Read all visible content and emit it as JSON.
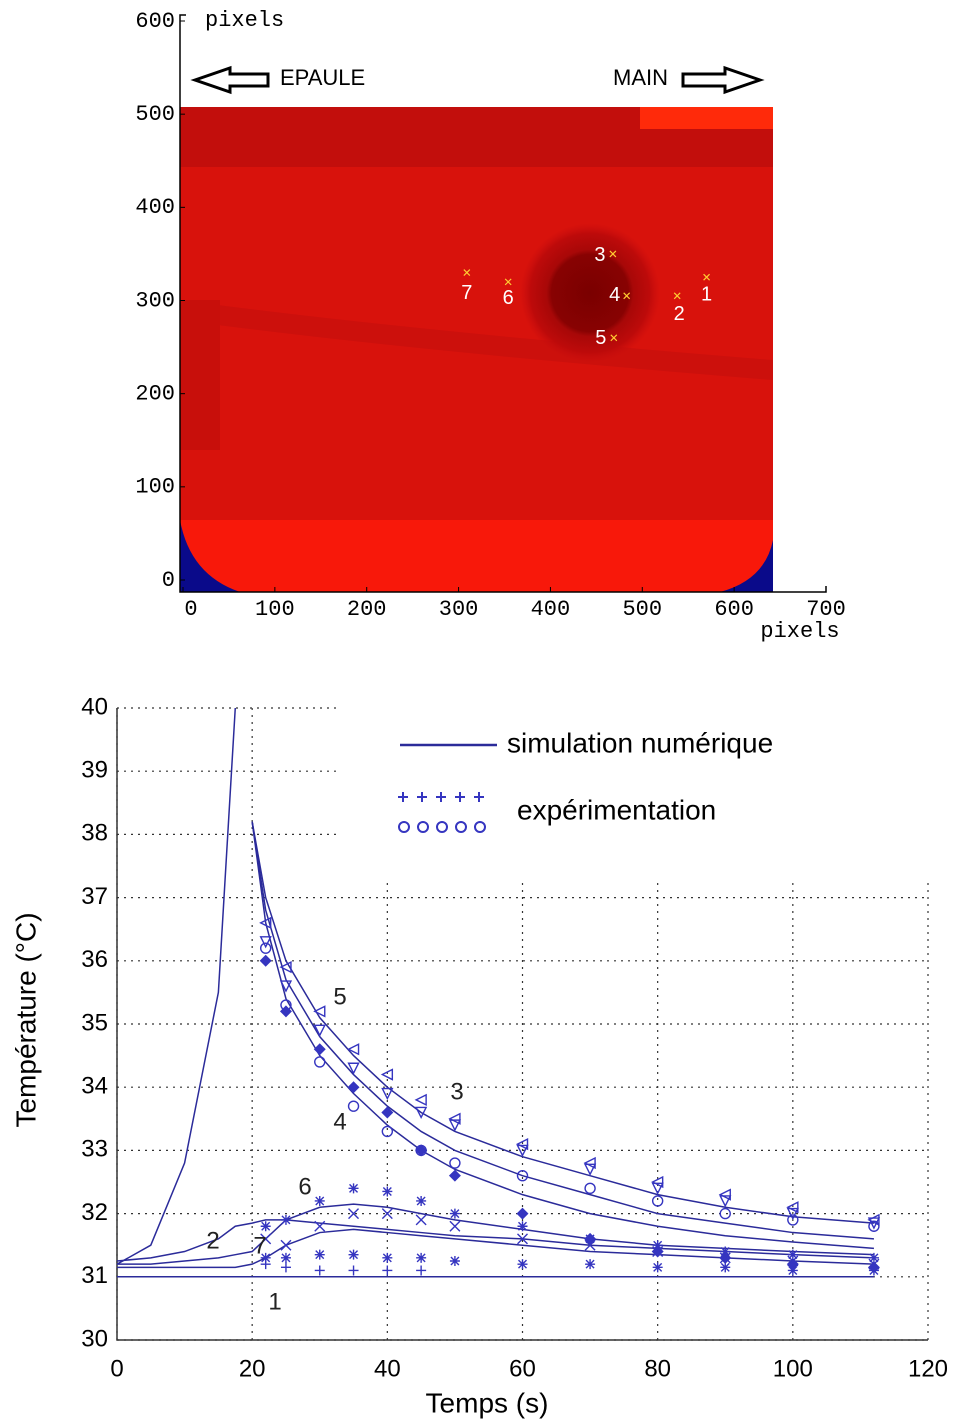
{
  "chart_data": [
    {
      "type": "heatmap",
      "xlabel": "pixels",
      "ylabel": "pixels",
      "xlim": [
        0,
        700
      ],
      "ylim": [
        0,
        600
      ],
      "xticks": [
        0,
        100,
        200,
        300,
        400,
        500,
        600,
        700
      ],
      "yticks": [
        0,
        100,
        200,
        300,
        400,
        500,
        600
      ],
      "annotations": [
        "EPAULE",
        "MAIN"
      ],
      "points": {
        "labels": [
          "1",
          "2",
          "3",
          "4",
          "5",
          "6",
          "7"
        ],
        "x": [
          570,
          538,
          468,
          483,
          469,
          354,
          309
        ],
        "y": [
          325,
          305,
          350,
          305,
          260,
          320,
          330
        ],
        "color": "#ffcc33"
      }
    },
    {
      "type": "line",
      "xlabel": "Temps (s)",
      "ylabel": "Température (°C)",
      "xlim": [
        0,
        120
      ],
      "ylim": [
        30,
        40
      ],
      "xticks": [
        0,
        20,
        40,
        60,
        80,
        100,
        120
      ],
      "yticks": [
        30,
        31,
        32,
        33,
        34,
        35,
        36,
        37,
        38,
        39,
        40
      ],
      "grid": true,
      "legend": {
        "position": "upper right",
        "entries": [
          "simulation numérique",
          "expérimentation"
        ]
      },
      "curve_labels": [
        "5",
        "3",
        "4",
        "6",
        "2",
        "7",
        "1"
      ],
      "x": [
        0,
        5,
        10,
        15,
        17.5,
        20,
        22,
        25,
        30,
        35,
        40,
        45,
        50,
        60,
        70,
        80,
        90,
        100,
        112
      ],
      "series": [
        {
          "group": "simulation",
          "color": "#2b2b9a",
          "values": [
            31.2,
            31.5,
            32.8,
            35.5,
            40,
            null,
            null,
            null,
            null,
            null,
            null,
            null,
            null,
            null,
            null,
            null,
            null,
            null,
            null
          ]
        },
        {
          "group": "simulation",
          "color": "#2b2b9a",
          "values": [
            null,
            null,
            null,
            null,
            null,
            38.2,
            37,
            36,
            35.1,
            34.5,
            34.0,
            33.6,
            33.3,
            32.9,
            32.6,
            32.3,
            32.1,
            31.95,
            31.85
          ]
        },
        {
          "group": "simulation",
          "color": "#2b2b9a",
          "values": [
            null,
            null,
            null,
            null,
            null,
            38.2,
            36.8,
            35.7,
            34.8,
            34.2,
            33.7,
            33.3,
            33.0,
            32.6,
            32.3,
            32.0,
            31.85,
            31.7,
            31.6
          ]
        },
        {
          "group": "simulation",
          "color": "#2b2b9a",
          "values": [
            null,
            null,
            null,
            null,
            null,
            38.2,
            36.6,
            35.4,
            34.5,
            33.9,
            33.4,
            33.0,
            32.7,
            32.3,
            32.0,
            31.8,
            31.65,
            31.55,
            31.45
          ]
        },
        {
          "group": "simulation",
          "color": "#2b2b9a",
          "values": [
            31.25,
            31.3,
            31.4,
            31.6,
            31.8,
            31.85,
            31.9,
            31.9,
            31.85,
            31.8,
            31.75,
            31.7,
            31.65,
            31.6,
            31.5,
            31.45,
            31.4,
            31.35,
            31.3
          ]
        },
        {
          "group": "simulation",
          "color": "#2b2b9a",
          "values": [
            31.2,
            31.2,
            31.25,
            31.3,
            31.35,
            31.4,
            31.6,
            31.9,
            32.1,
            32.15,
            32.1,
            32.0,
            31.9,
            31.75,
            31.6,
            31.5,
            31.45,
            31.4,
            31.35
          ]
        },
        {
          "group": "simulation",
          "color": "#2b2b9a",
          "values": [
            31.15,
            31.15,
            31.15,
            31.15,
            31.15,
            31.2,
            31.3,
            31.5,
            31.7,
            31.75,
            31.7,
            31.65,
            31.6,
            31.5,
            31.4,
            31.35,
            31.3,
            31.25,
            31.2
          ]
        },
        {
          "group": "simulation",
          "color": "#2b2b9a",
          "values": [
            31.0,
            31.0,
            31.0,
            31.0,
            31.0,
            31.0,
            31.0,
            31.0,
            31.0,
            31.0,
            31.0,
            31.0,
            31.0,
            31.0,
            31.0,
            31.0,
            31.0,
            31.0,
            31.0
          ]
        },
        {
          "group": "experiment",
          "marker": "triangle",
          "color": "#3535c0",
          "values": [
            null,
            null,
            null,
            null,
            null,
            null,
            36.6,
            35.9,
            35.2,
            34.6,
            34.2,
            33.8,
            33.5,
            33.1,
            32.8,
            32.5,
            32.3,
            32.1,
            31.9
          ]
        },
        {
          "group": "experiment",
          "marker": "triangle-down",
          "color": "#3535c0",
          "values": [
            null,
            null,
            null,
            null,
            null,
            null,
            36.3,
            35.6,
            34.9,
            34.3,
            33.9,
            33.6,
            33.4,
            33.0,
            32.7,
            32.4,
            32.2,
            32.0,
            31.85
          ]
        },
        {
          "group": "experiment",
          "marker": "circle",
          "color": "#3535c0",
          "values": [
            null,
            null,
            null,
            null,
            null,
            null,
            36.2,
            35.3,
            34.4,
            33.7,
            33.3,
            33.0,
            32.8,
            32.6,
            32.4,
            32.2,
            32.0,
            31.9,
            31.8
          ]
        },
        {
          "group": "experiment",
          "marker": "diamond",
          "color": "#3535c0",
          "values": [
            null,
            null,
            null,
            null,
            null,
            null,
            36.0,
            35.2,
            34.6,
            34.0,
            33.6,
            33.0,
            32.6,
            32.0,
            31.6,
            31.4,
            31.3,
            31.2,
            31.15
          ]
        },
        {
          "group": "experiment",
          "marker": "star",
          "color": "#3535c0",
          "values": [
            null,
            null,
            null,
            null,
            null,
            null,
            31.8,
            31.9,
            32.2,
            32.4,
            32.35,
            32.2,
            32.0,
            31.8,
            31.6,
            31.5,
            31.4,
            31.35,
            31.3
          ]
        },
        {
          "group": "experiment",
          "marker": "x",
          "color": "#3535c0",
          "values": [
            null,
            null,
            null,
            null,
            null,
            null,
            31.6,
            31.5,
            31.8,
            32.0,
            32.0,
            31.9,
            31.8,
            31.6,
            31.5,
            31.4,
            31.3,
            31.25,
            31.2
          ]
        },
        {
          "group": "experiment",
          "marker": "star",
          "color": "#3535c0",
          "values": [
            null,
            null,
            null,
            null,
            null,
            null,
            31.3,
            31.3,
            31.35,
            31.35,
            31.3,
            31.3,
            31.25,
            31.2,
            31.2,
            31.15,
            31.15,
            31.1,
            31.1
          ]
        },
        {
          "group": "experiment",
          "marker": "plus",
          "color": "#3535c0",
          "values": [
            null,
            null,
            null,
            null,
            null,
            null,
            31.2,
            31.15,
            31.1,
            31.1,
            31.1,
            31.1,
            null,
            null,
            null,
            null,
            null,
            null,
            null
          ]
        }
      ]
    }
  ]
}
